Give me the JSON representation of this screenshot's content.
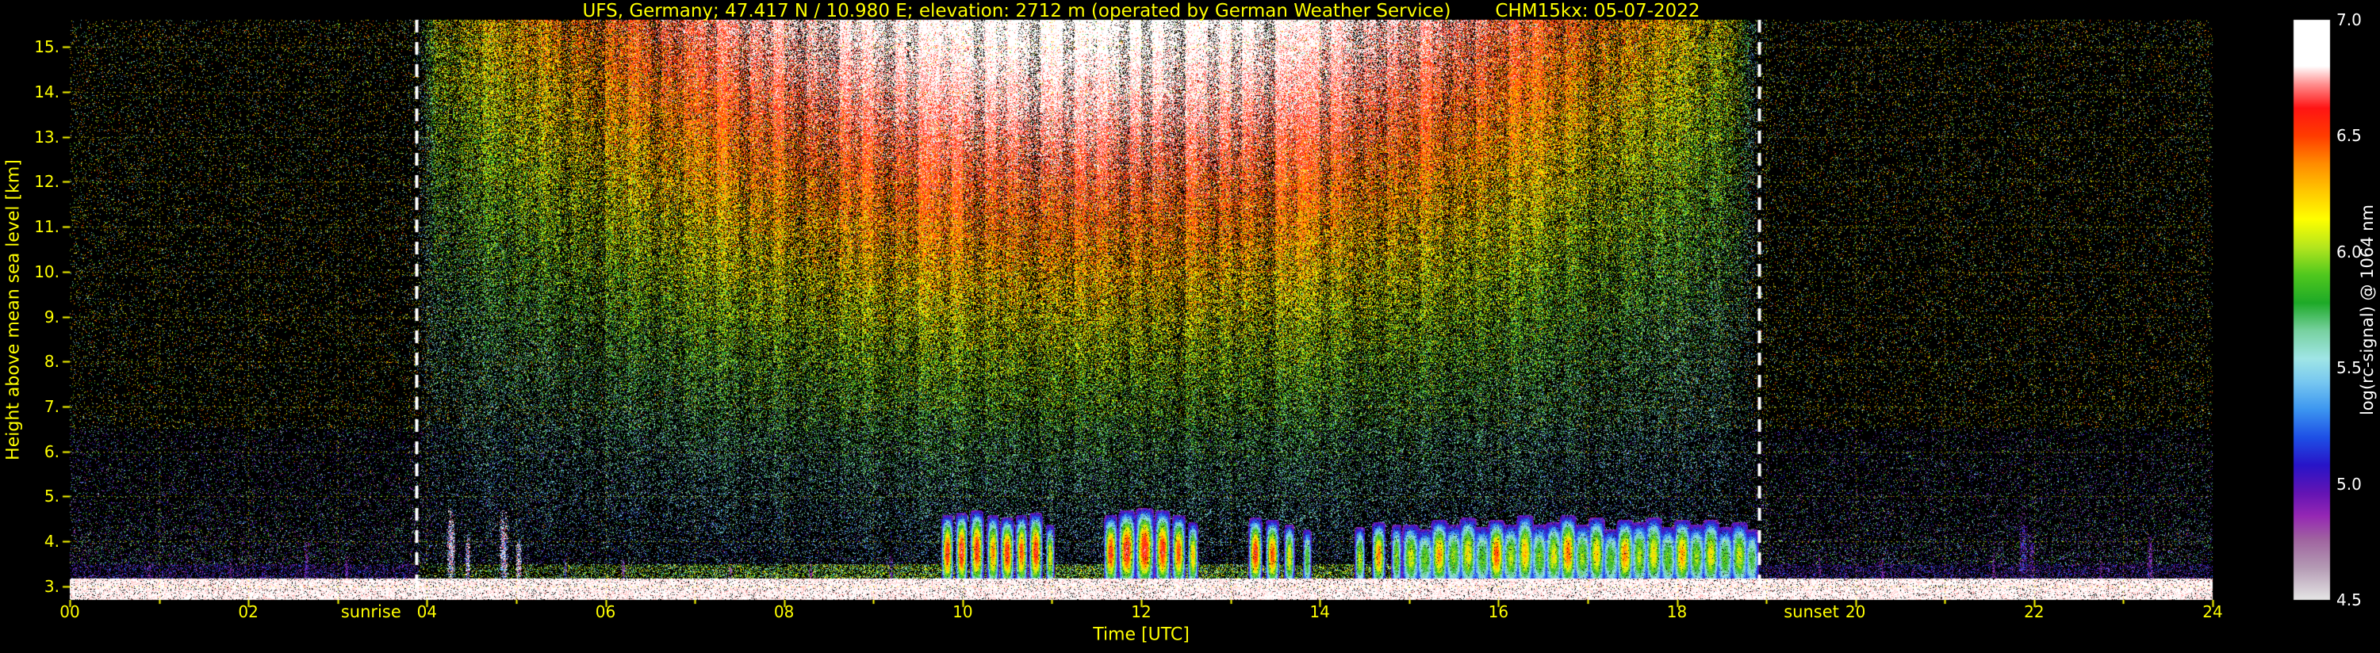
{
  "header": {
    "station": "UFS, Germany; 47.417 N / 10.980 E; elevation: 2712 m  (operated by German Weather Service)",
    "instrument": "CHM15kx: 05-07-2022"
  },
  "x_axis": {
    "label": "Time [UTC]",
    "ticks": [
      "00",
      "02",
      "04",
      "06",
      "08",
      "10",
      "12",
      "14",
      "16",
      "18",
      "20",
      "22",
      "24"
    ],
    "range": [
      0,
      24
    ]
  },
  "y_axis": {
    "label": "Height above mean sea level [km]",
    "ticks": [
      "3.",
      "4.",
      "5.",
      "6.",
      "7.",
      "8.",
      "9.",
      "10.",
      "11.",
      "12.",
      "13.",
      "14.",
      "15."
    ],
    "range": [
      2.7,
      15.6
    ]
  },
  "colorbar": {
    "label": "log(rc-signal) @ 1064 nm",
    "ticks": [
      "7.0",
      "6.5",
      "6.0",
      "5.5",
      "5.0",
      "4.5"
    ],
    "range": [
      4.5,
      7.0
    ],
    "stops": [
      [
        4.5,
        "#e6e6e6"
      ],
      [
        4.64,
        "#b49ab4"
      ],
      [
        4.76,
        "#a064a0"
      ],
      [
        4.86,
        "#9628b4"
      ],
      [
        4.96,
        "#6414b4"
      ],
      [
        5.08,
        "#2814c8"
      ],
      [
        5.2,
        "#1e50e6"
      ],
      [
        5.32,
        "#3c96f0"
      ],
      [
        5.44,
        "#78c8f0"
      ],
      [
        5.54,
        "#a0e6e6"
      ],
      [
        5.66,
        "#78d2a0"
      ],
      [
        5.78,
        "#1eaa28"
      ],
      [
        5.9,
        "#50c81e"
      ],
      [
        6.02,
        "#b4e61e"
      ],
      [
        6.14,
        "#ffff00"
      ],
      [
        6.26,
        "#ffc800"
      ],
      [
        6.38,
        "#ff8c00"
      ],
      [
        6.5,
        "#ff3c00"
      ],
      [
        6.62,
        "#ff1414"
      ],
      [
        6.72,
        "#ff8c8c"
      ],
      [
        6.8,
        "#ffffff"
      ],
      [
        7.0,
        "#ffffff"
      ]
    ]
  },
  "annotations": {
    "sunrise_label": "sunrise",
    "sunset_label": "sunset"
  },
  "colors": {
    "axis_text": "#ffff00",
    "colorbar_text": "#ffffff",
    "grid": "rgba(255,255,0,0.55)",
    "sun_line": "#ffffff",
    "background": "#000000"
  },
  "chart_data": {
    "type": "heatmap",
    "title": "UFS, Germany; 47.417 N / 10.980 E; elevation: 2712 m  (operated by German Weather Service)   CHM15kx: 05-07-2022",
    "xlabel": "Time [UTC]",
    "ylabel": "Height above mean sea level [km]",
    "value_label": "log(rc-signal) @ 1064 nm",
    "x_range_hours": [
      0,
      24
    ],
    "y_range_km": [
      2.7,
      15.6
    ],
    "value_range": [
      4.5,
      7.0
    ],
    "sunrise_utc": 3.88,
    "sunset_utc": 18.92,
    "surface_km": 3.18,
    "grid_x_step_hours": 1,
    "grid_y_step_km": 1,
    "clouds": [
      {
        "t": 4.27,
        "w": 0.05,
        "top": 4.65,
        "core": 6.9,
        "type": "spike"
      },
      {
        "t": 4.46,
        "w": 0.03,
        "top": 4.1,
        "core": 6.3,
        "type": "spike"
      },
      {
        "t": 4.86,
        "w": 0.05,
        "top": 4.6,
        "core": 6.85,
        "type": "spike"
      },
      {
        "t": 5.03,
        "w": 0.035,
        "top": 4.0,
        "core": 6.0,
        "type": "spike"
      },
      {
        "t": 5.55,
        "w": 0.02,
        "top": 3.7,
        "core": 5.3,
        "type": "streak"
      },
      {
        "t": 6.2,
        "w": 0.02,
        "top": 3.6,
        "core": 5.1,
        "type": "streak"
      },
      {
        "t": 7.4,
        "w": 0.02,
        "top": 3.6,
        "core": 5.0,
        "type": "streak"
      },
      {
        "t": 8.3,
        "w": 0.02,
        "top": 3.55,
        "core": 5.0,
        "type": "streak"
      },
      {
        "t": 9.2,
        "w": 0.025,
        "top": 3.7,
        "core": 5.2,
        "type": "streak"
      },
      {
        "t": 9.83,
        "w": 0.07,
        "top": 4.5,
        "core": 6.6
      },
      {
        "t": 9.99,
        "w": 0.07,
        "top": 4.55,
        "core": 6.65
      },
      {
        "t": 10.16,
        "w": 0.08,
        "top": 4.6,
        "core": 6.6
      },
      {
        "t": 10.34,
        "w": 0.07,
        "top": 4.5,
        "core": 6.4
      },
      {
        "t": 10.5,
        "w": 0.08,
        "top": 4.45,
        "core": 6.6
      },
      {
        "t": 10.66,
        "w": 0.07,
        "top": 4.5,
        "core": 6.5
      },
      {
        "t": 10.82,
        "w": 0.08,
        "top": 4.55,
        "core": 6.6
      },
      {
        "t": 10.98,
        "w": 0.05,
        "top": 4.3,
        "core": 6.2
      },
      {
        "t": 11.66,
        "w": 0.08,
        "top": 4.5,
        "core": 6.55
      },
      {
        "t": 11.84,
        "w": 0.1,
        "top": 4.6,
        "core": 6.65
      },
      {
        "t": 12.04,
        "w": 0.11,
        "top": 4.65,
        "core": 6.65
      },
      {
        "t": 12.24,
        "w": 0.09,
        "top": 4.6,
        "core": 6.6
      },
      {
        "t": 12.42,
        "w": 0.08,
        "top": 4.5,
        "core": 6.5
      },
      {
        "t": 12.58,
        "w": 0.06,
        "top": 4.35,
        "core": 6.3
      },
      {
        "t": 13.28,
        "w": 0.08,
        "top": 4.45,
        "core": 6.6
      },
      {
        "t": 13.47,
        "w": 0.08,
        "top": 4.4,
        "core": 6.5
      },
      {
        "t": 13.66,
        "w": 0.06,
        "top": 4.3,
        "core": 6.2
      },
      {
        "t": 13.86,
        "w": 0.05,
        "top": 4.2,
        "core": 5.9
      },
      {
        "t": 14.45,
        "w": 0.06,
        "top": 4.25,
        "core": 6.1
      },
      {
        "t": 14.66,
        "w": 0.08,
        "top": 4.35,
        "core": 6.4
      },
      {
        "t": 14.86,
        "w": 0.06,
        "top": 4.3,
        "core": 6.0
      },
      {
        "t": 15.02,
        "w": 0.1,
        "top": 4.3,
        "core": 6.1
      },
      {
        "t": 15.18,
        "w": 0.1,
        "top": 4.2,
        "core": 5.95
      },
      {
        "t": 15.34,
        "w": 0.1,
        "top": 4.4,
        "core": 6.35
      },
      {
        "t": 15.5,
        "w": 0.1,
        "top": 4.3,
        "core": 6.0
      },
      {
        "t": 15.66,
        "w": 0.1,
        "top": 4.45,
        "core": 6.2
      },
      {
        "t": 15.82,
        "w": 0.1,
        "top": 4.25,
        "core": 5.9
      },
      {
        "t": 15.98,
        "w": 0.1,
        "top": 4.4,
        "core": 6.5
      },
      {
        "t": 16.14,
        "w": 0.1,
        "top": 4.3,
        "core": 6.05
      },
      {
        "t": 16.3,
        "w": 0.1,
        "top": 4.5,
        "core": 6.3
      },
      {
        "t": 16.46,
        "w": 0.1,
        "top": 4.3,
        "core": 5.95
      },
      {
        "t": 16.62,
        "w": 0.1,
        "top": 4.35,
        "core": 6.15
      },
      {
        "t": 16.78,
        "w": 0.1,
        "top": 4.5,
        "core": 6.45
      },
      {
        "t": 16.94,
        "w": 0.1,
        "top": 4.3,
        "core": 6.0
      },
      {
        "t": 17.1,
        "w": 0.1,
        "top": 4.45,
        "core": 6.25
      },
      {
        "t": 17.26,
        "w": 0.1,
        "top": 4.2,
        "core": 5.9
      },
      {
        "t": 17.42,
        "w": 0.1,
        "top": 4.4,
        "core": 6.4
      },
      {
        "t": 17.58,
        "w": 0.1,
        "top": 4.35,
        "core": 6.05
      },
      {
        "t": 17.74,
        "w": 0.1,
        "top": 4.45,
        "core": 6.2
      },
      {
        "t": 17.9,
        "w": 0.1,
        "top": 4.25,
        "core": 5.95
      },
      {
        "t": 18.06,
        "w": 0.1,
        "top": 4.4,
        "core": 6.35
      },
      {
        "t": 18.22,
        "w": 0.1,
        "top": 4.3,
        "core": 6.0
      },
      {
        "t": 18.38,
        "w": 0.1,
        "top": 4.4,
        "core": 6.2
      },
      {
        "t": 18.54,
        "w": 0.1,
        "top": 4.25,
        "core": 5.9
      },
      {
        "t": 18.7,
        "w": 0.1,
        "top": 4.35,
        "core": 6.1
      },
      {
        "t": 18.84,
        "w": 0.08,
        "top": 4.2,
        "core": 5.8
      },
      {
        "t": 0.9,
        "w": 0.02,
        "top": 3.6,
        "core": 5.0,
        "type": "streak"
      },
      {
        "t": 1.8,
        "w": 0.02,
        "top": 3.55,
        "core": 5.0,
        "type": "streak"
      },
      {
        "t": 2.65,
        "w": 0.03,
        "top": 4.0,
        "core": 5.15,
        "type": "streak"
      },
      {
        "t": 3.1,
        "w": 0.02,
        "top": 3.7,
        "core": 5.0,
        "type": "streak"
      },
      {
        "t": 19.6,
        "w": 0.02,
        "top": 3.7,
        "core": 5.0,
        "type": "streak"
      },
      {
        "t": 20.3,
        "w": 0.02,
        "top": 3.6,
        "core": 5.0,
        "type": "streak"
      },
      {
        "t": 21.55,
        "w": 0.02,
        "top": 3.8,
        "core": 5.05,
        "type": "streak"
      },
      {
        "t": 21.88,
        "w": 0.05,
        "top": 4.55,
        "core": 5.35,
        "type": "streak"
      },
      {
        "t": 21.97,
        "w": 0.03,
        "top": 4.2,
        "core": 5.2,
        "type": "streak"
      },
      {
        "t": 22.75,
        "w": 0.02,
        "top": 3.6,
        "core": 5.0,
        "type": "streak"
      },
      {
        "t": 23.3,
        "w": 0.03,
        "top": 4.1,
        "core": 5.05,
        "type": "streak"
      }
    ]
  }
}
